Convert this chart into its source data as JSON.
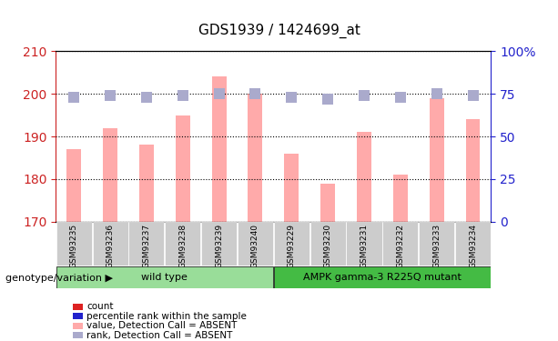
{
  "title": "GDS1939 / 1424699_at",
  "samples": [
    "GSM93235",
    "GSM93236",
    "GSM93237",
    "GSM93238",
    "GSM93239",
    "GSM93240",
    "GSM93229",
    "GSM93230",
    "GSM93231",
    "GSM93232",
    "GSM93233",
    "GSM93234"
  ],
  "bar_values": [
    187,
    192,
    188,
    195,
    204,
    200,
    186,
    179,
    191,
    181,
    199,
    194
  ],
  "rank_values": [
    73,
    74,
    73,
    74,
    75,
    75,
    73,
    72,
    74,
    73,
    75,
    74
  ],
  "ylim_left": [
    170,
    210
  ],
  "ylim_right": [
    0,
    100
  ],
  "yticks_left": [
    170,
    180,
    190,
    200,
    210
  ],
  "yticks_right": [
    0,
    25,
    50,
    75,
    100
  ],
  "ytick_labels_right": [
    "0",
    "25",
    "50",
    "75",
    "100%"
  ],
  "bar_color": "#ffaaaa",
  "rank_color": "#aaaacc",
  "bar_width": 0.4,
  "rank_marker_size": 8,
  "group1_label": "wild type",
  "group2_label": "AMPK gamma-3 R225Q mutant",
  "group1_color": "#99dd99",
  "group2_color": "#44bb44",
  "genotype_label": "genotype/variation",
  "legend_items": [
    {
      "label": "count",
      "color": "#dd2222",
      "type": "rect"
    },
    {
      "label": "percentile rank within the sample",
      "color": "#2222cc",
      "type": "rect"
    },
    {
      "label": "value, Detection Call = ABSENT",
      "color": "#ffaaaa",
      "type": "rect"
    },
    {
      "label": "rank, Detection Call = ABSENT",
      "color": "#aaaacc",
      "type": "rect"
    }
  ],
  "n_group1": 6,
  "n_group2": 6,
  "left_axis_color": "#cc2222",
  "right_axis_color": "#2222cc",
  "grid_color": "#000000",
  "tick_area_color": "#cccccc"
}
